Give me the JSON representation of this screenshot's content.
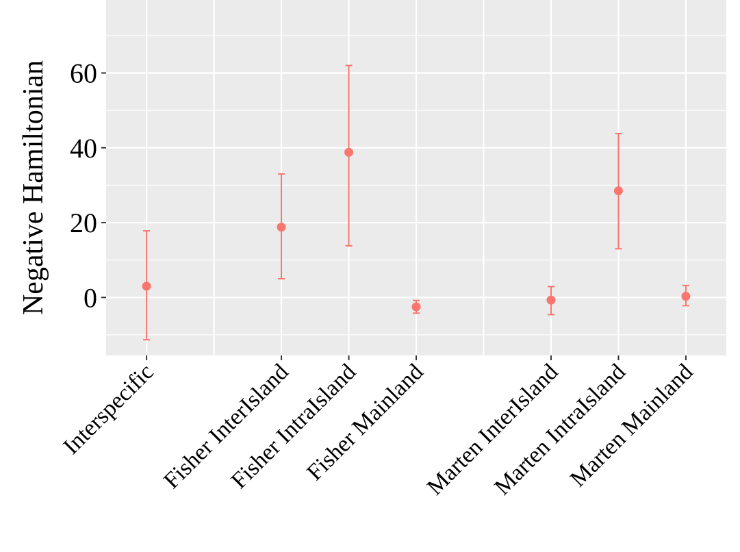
{
  "chart_data": {
    "type": "scatter",
    "title": "",
    "xlabel": "",
    "ylabel": "Negative Hamiltonian",
    "x_positions": [
      1,
      3,
      4,
      5,
      7,
      8,
      9
    ],
    "xlim": [
      0.4,
      9.6
    ],
    "ylim": [
      -15.5,
      79.5
    ],
    "y_ticks": [
      0,
      20,
      40,
      60
    ],
    "y_minor_ticks": [
      -10,
      10,
      30,
      50,
      70
    ],
    "x_minor_positions": [
      2,
      6
    ],
    "grid": true,
    "legend": "none",
    "series": [
      {
        "color": "#F8766D",
        "points": [
          {
            "category": "Interspecific",
            "y": 3,
            "ymin": -11.3,
            "ymax": 17.8
          },
          {
            "category": "Fisher InterIsland",
            "y": 18.8,
            "ymin": 5,
            "ymax": 33
          },
          {
            "category": "Fisher IntraIsland",
            "y": 38.8,
            "ymin": 13.8,
            "ymax": 62
          },
          {
            "category": "Fisher Mainland",
            "y": -2.5,
            "ymin": -4.2,
            "ymax": -0.8
          },
          {
            "category": "Marten InterIsland",
            "y": -0.7,
            "ymin": -4.6,
            "ymax": 2.9
          },
          {
            "category": "Marten IntraIsland",
            "y": 28.5,
            "ymin": 13,
            "ymax": 43.8
          },
          {
            "category": "Marten Mainland",
            "y": 0.3,
            "ymin": -2.2,
            "ymax": 3.2
          }
        ]
      }
    ],
    "colors": {
      "panel": "#EBEBEB",
      "grid": "#FFFFFF",
      "point": "#F8766D"
    }
  }
}
